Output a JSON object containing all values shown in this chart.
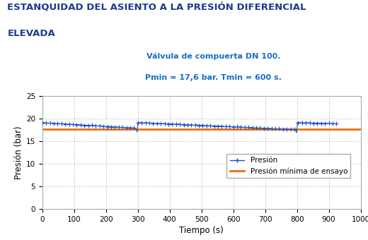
{
  "title_line1": "ESTANQUIDAD DEL ASIENTO A LA PRESIÓN DIFERENCIAL",
  "title_line2": "ELEVADA",
  "subtitle_line1": "Válvula de compuerta DN 100.",
  "subtitle_line2": "Pmin = 17,6 bar. Tmin = 600 s.",
  "xlabel": "Tiempo (s)",
  "ylabel": "Presión (bar)",
  "xlim": [
    0,
    1000
  ],
  "ylim": [
    0,
    25
  ],
  "xticks": [
    0,
    100,
    200,
    300,
    400,
    500,
    600,
    700,
    800,
    900,
    1000
  ],
  "yticks": [
    0,
    5,
    10,
    15,
    20,
    25
  ],
  "pmin": 17.6,
  "title_color": "#1a3a8c",
  "subtitle_color": "#1a6ec7",
  "line_blue": "#1f4dc5",
  "line_orange": "#e8700a",
  "legend_label_pressure": "Presión",
  "legend_label_min": "Presión mínima de ensayo",
  "background_color": "#ffffff",
  "grid_color": "#b0b0b0"
}
